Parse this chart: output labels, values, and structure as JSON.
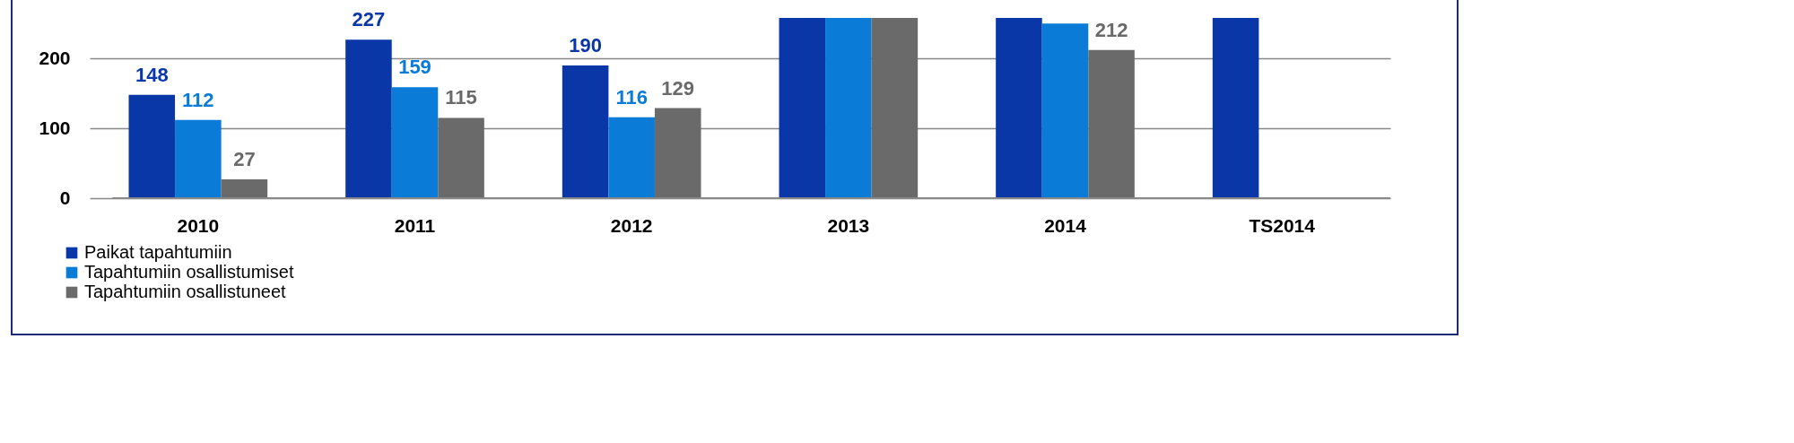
{
  "chart_data": {
    "type": "bar",
    "categories": [
      "2010",
      "2011",
      "2012",
      "2013",
      "2014",
      "TS2014"
    ],
    "series": [
      {
        "name": "Paikat tapahtumiin",
        "color": "#0a37a8",
        "values": [
          148,
          227,
          190,
          258,
          258,
          258
        ],
        "value_labels": [
          "148",
          "227",
          "190",
          null,
          null,
          null
        ]
      },
      {
        "name": "Tapahtumiin osallistumiset",
        "color": "#0a7bd6",
        "values": [
          112,
          159,
          116,
          258,
          250,
          null
        ],
        "value_labels": [
          "112",
          "159",
          "116",
          null,
          null,
          null
        ]
      },
      {
        "name": "Tapahtumiin osallistuneet",
        "color": "#6a6a6a",
        "values": [
          27,
          115,
          129,
          258,
          212,
          null
        ],
        "value_labels": [
          "27",
          "115",
          "129",
          null,
          "212",
          null
        ]
      }
    ],
    "ylim": [
      0,
      258
    ],
    "yticks": [
      0,
      100,
      200
    ],
    "grid": "y",
    "legend": "bottom left"
  }
}
